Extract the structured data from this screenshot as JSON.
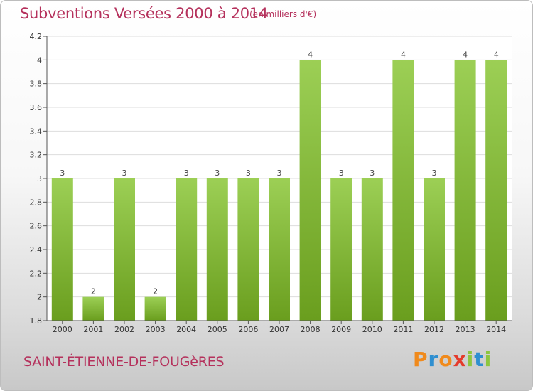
{
  "header": {
    "title": "Subventions Versées 2000 à 2014",
    "unit": "(en milliers d'€)"
  },
  "footer": {
    "commune": "SAINT-ÉTIENNE-DE-FOUGèRES",
    "logo": "Proxiti",
    "logo_colors": [
      "#f08a1c",
      "#2f8fd0",
      "#f08a1c",
      "#e43b2c",
      "#8dc63f",
      "#2f8fd0",
      "#8dc63f"
    ]
  },
  "chart_data": {
    "type": "bar",
    "title": "Subventions Versées 2000 à 2014",
    "xlabel": "",
    "ylabel": "",
    "categories": [
      "2000",
      "2001",
      "2002",
      "2003",
      "2004",
      "2005",
      "2006",
      "2007",
      "2008",
      "2009",
      "2010",
      "2011",
      "2012",
      "2013",
      "2014"
    ],
    "values": [
      3,
      2,
      3,
      2,
      3,
      3,
      3,
      3,
      4,
      3,
      3,
      4,
      3,
      4,
      4
    ],
    "data_labels": [
      "3",
      "2",
      "3",
      "2",
      "3",
      "3",
      "3",
      "3",
      "4",
      "3",
      "3",
      "4",
      "3",
      "4",
      "4"
    ],
    "ylim": [
      1.8,
      4.2
    ],
    "yticks": [
      1.8,
      2,
      2.2,
      2.4,
      2.6,
      2.8,
      3,
      3.2,
      3.4,
      3.6,
      3.8,
      4,
      4.2
    ],
    "ytick_labels": [
      "1.8",
      "2",
      "2.2",
      "2.4",
      "2.6",
      "2.8",
      "3",
      "3.2",
      "3.4",
      "3.6",
      "3.8",
      "4",
      "4.2"
    ],
    "grid": true,
    "colors": {
      "bar_top": "#9ccf55",
      "bar_bottom": "#6a9e1e",
      "grid": "#dddddd",
      "axis": "#555555"
    }
  }
}
